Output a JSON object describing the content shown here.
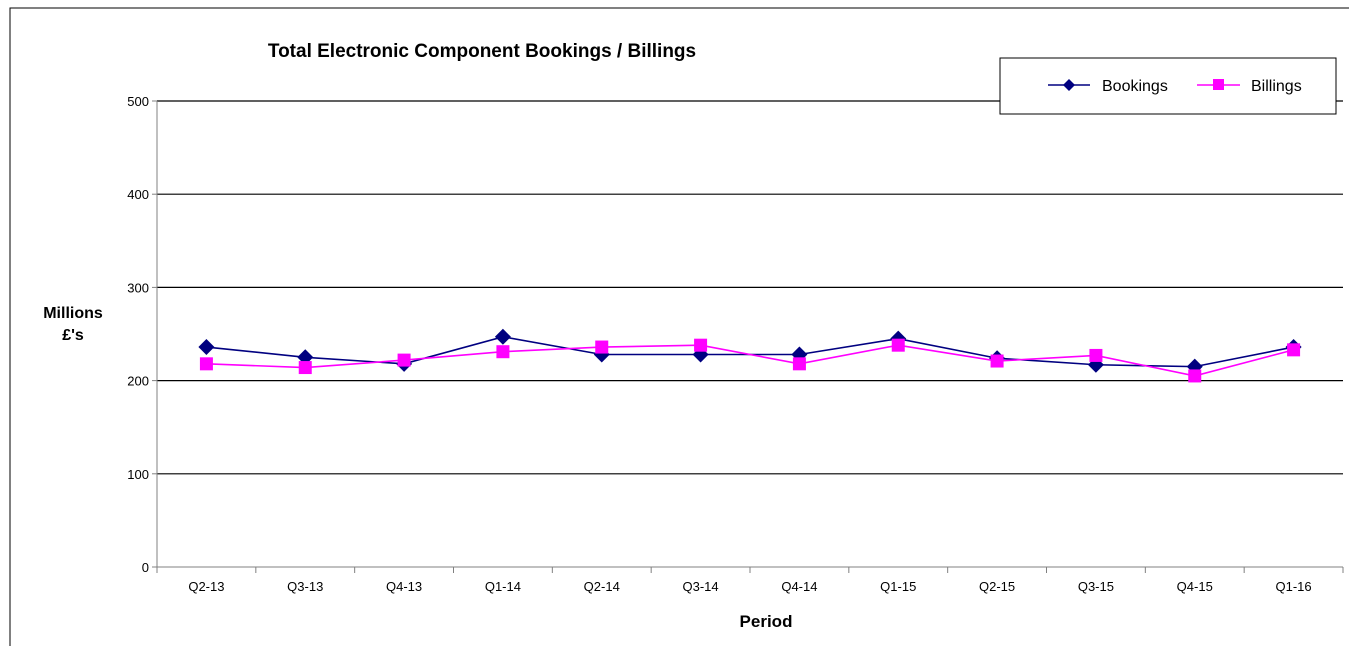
{
  "chart_data": {
    "type": "line",
    "title": "Total Electronic Component Bookings / Billings",
    "xlabel": "Period",
    "ylabel_line1": "Millions",
    "ylabel_line2": "£'s",
    "categories": [
      "Q2-13",
      "Q3-13",
      "Q4-13",
      "Q1-14",
      "Q2-14",
      "Q3-14",
      "Q4-14",
      "Q1-15",
      "Q2-15",
      "Q3-15",
      "Q4-15",
      "Q1-16"
    ],
    "yticks": [
      0,
      100,
      200,
      300,
      400,
      500
    ],
    "ylim": [
      0,
      500
    ],
    "grid": true,
    "legend_position": "top-right",
    "series": [
      {
        "name": "Bookings",
        "values": [
          236,
          225,
          218,
          247,
          228,
          228,
          228,
          245,
          224,
          217,
          215,
          236
        ],
        "color": "#000080",
        "marker": "diamond"
      },
      {
        "name": "Billings",
        "values": [
          218,
          214,
          222,
          231,
          236,
          238,
          218,
          238,
          221,
          227,
          205,
          233
        ],
        "color": "#ff00ff",
        "marker": "square"
      }
    ]
  }
}
